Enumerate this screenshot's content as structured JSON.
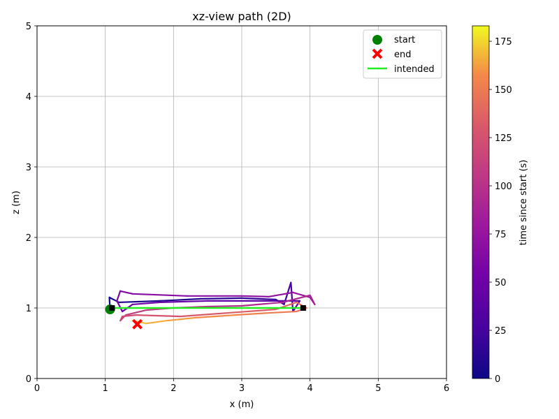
{
  "chart_data": {
    "type": "line",
    "title": "xz-view path (2D)",
    "xlabel": "x (m)",
    "ylabel": "z (m)",
    "xlim": [
      0,
      6
    ],
    "ylim": [
      0,
      5
    ],
    "xticks": [
      "0",
      "1",
      "2",
      "3",
      "4",
      "5",
      "6"
    ],
    "yticks": [
      "0",
      "1",
      "2",
      "3",
      "4",
      "5"
    ],
    "grid": true,
    "legend": {
      "placement": "top-right",
      "entries": [
        {
          "key": "start",
          "label": "start",
          "marker": "circle",
          "color": "#008000"
        },
        {
          "key": "end",
          "label": "end",
          "marker": "x",
          "color": "#ff0000"
        },
        {
          "key": "intended",
          "label": "intended",
          "marker": "line",
          "color": "#22ee22"
        }
      ]
    },
    "colorbar": {
      "label": "time since start (s)",
      "colormap": "plasma",
      "range": [
        0,
        183
      ],
      "ticks": [
        "0",
        "25",
        "50",
        "75",
        "100",
        "125",
        "150",
        "175"
      ],
      "tick_values": [
        0,
        25,
        50,
        75,
        100,
        125,
        150,
        175
      ]
    },
    "start": {
      "x": 1.07,
      "z": 0.98
    },
    "end": {
      "x": 1.47,
      "z": 0.77
    },
    "waypoints": [
      {
        "x": 1.1,
        "z": 1.0
      },
      {
        "x": 3.9,
        "z": 1.0
      }
    ],
    "intended": {
      "x": [
        1.1,
        3.9
      ],
      "z": [
        1.0,
        1.0
      ]
    },
    "path": {
      "t": [
        0,
        3,
        6,
        9,
        12,
        16,
        20,
        24,
        28,
        32,
        36,
        40,
        44,
        48,
        52,
        55,
        58,
        61,
        64,
        67,
        70,
        73,
        76,
        80,
        84,
        88,
        92,
        96,
        100,
        104,
        108,
        112,
        116,
        120,
        124,
        128,
        132,
        136,
        140,
        144,
        148,
        152,
        156,
        160,
        164,
        168,
        172,
        176,
        180,
        183
      ],
      "x": [
        1.07,
        1.06,
        1.2,
        1.8,
        2.4,
        3.0,
        3.5,
        3.62,
        3.72,
        3.75,
        3.85,
        3.4,
        2.5,
        1.8,
        1.4,
        1.25,
        1.17,
        1.22,
        1.4,
        2.2,
        3.0,
        3.4,
        3.75,
        4.0,
        4.07,
        4.0,
        3.6,
        3.0,
        2.5,
        2.0,
        1.6,
        1.3,
        1.22,
        1.25,
        1.45,
        2.1,
        2.8,
        3.5,
        3.8,
        3.95,
        3.8,
        3.4,
        2.9,
        2.3,
        1.9,
        1.6,
        1.4,
        1.45,
        1.47,
        1.47
      ],
      "z": [
        0.98,
        1.15,
        1.08,
        1.1,
        1.13,
        1.14,
        1.12,
        1.05,
        1.36,
        0.95,
        1.1,
        1.1,
        1.1,
        1.08,
        1.05,
        0.95,
        1.1,
        1.24,
        1.2,
        1.17,
        1.17,
        1.16,
        1.22,
        1.15,
        1.05,
        1.18,
        1.08,
        1.03,
        1.02,
        1.0,
        0.97,
        0.9,
        0.82,
        0.88,
        0.9,
        0.88,
        0.93,
        0.98,
        1.08,
        1.0,
        0.95,
        0.93,
        0.9,
        0.86,
        0.82,
        0.78,
        0.82,
        0.8,
        0.78,
        0.77
      ]
    }
  }
}
